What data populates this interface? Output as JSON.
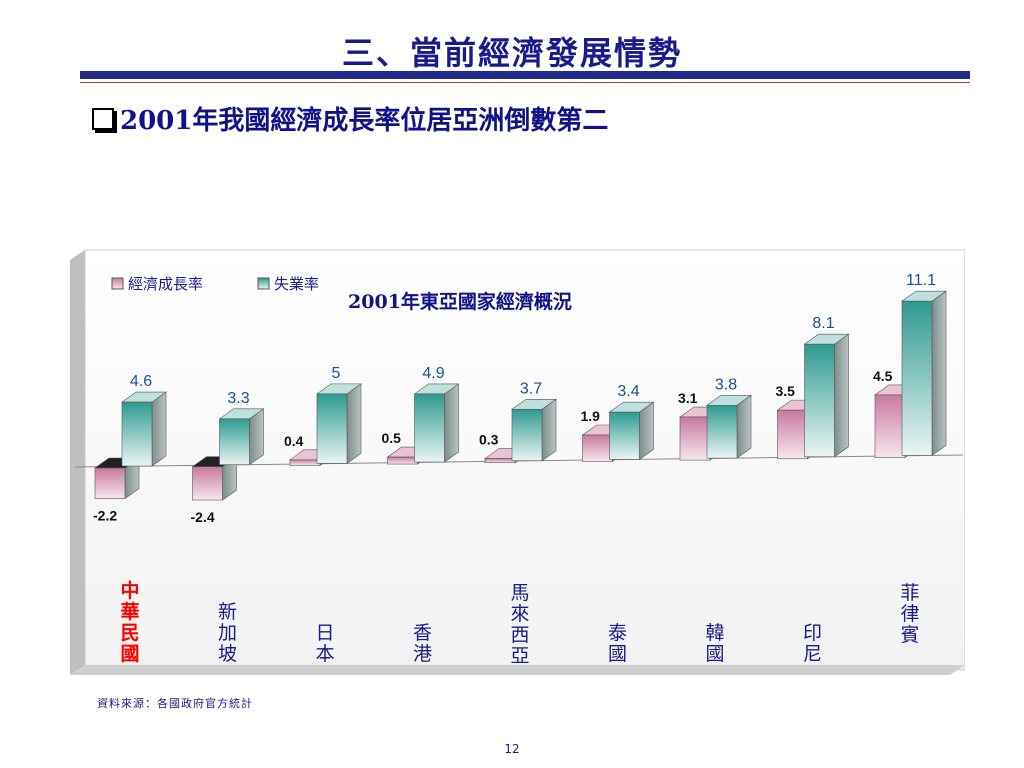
{
  "slide": {
    "title": "三、當前經濟發展情勢",
    "bullet_text": "2001年我國經濟成長率位居亞洲倒數第二",
    "source_note": "資料來源：各國政府官方統計",
    "page_number": "12"
  },
  "colors": {
    "title": "#1a1a8c",
    "rule": "#1f2a8a",
    "growth_bar": "#d9a3bf",
    "unemployment_bar": "#2e9a90",
    "highlight_category": "#ff0000"
  },
  "chart_data": {
    "type": "bar",
    "title": "2001年東亞國家經濟概況",
    "categories": [
      "中華民國",
      "新加坡",
      "日本",
      "香港",
      "馬來西亞",
      "泰國",
      "韓國",
      "印尼",
      "菲律賓"
    ],
    "highlight_category": "中華民國",
    "series": [
      {
        "name": "經濟成長率",
        "values": [
          -2.2,
          -2.4,
          0.4,
          0.5,
          0.3,
          1.9,
          3.1,
          3.5,
          4.5
        ],
        "labels": [
          "-2.2",
          "-2.4",
          "0.4",
          "0.5",
          "0.3",
          "1.9",
          "3.1",
          "3.5",
          "4.5"
        ]
      },
      {
        "name": "失業率",
        "values": [
          4.6,
          3.3,
          5,
          4.9,
          3.7,
          3.4,
          3.8,
          8.1,
          11.1
        ],
        "labels": [
          "4.6",
          "3.3",
          "5",
          "4.9",
          "3.7",
          "3.4",
          "3.8",
          "8.1",
          "11.1"
        ]
      }
    ],
    "legend_position": "top-left",
    "grid": false
  }
}
